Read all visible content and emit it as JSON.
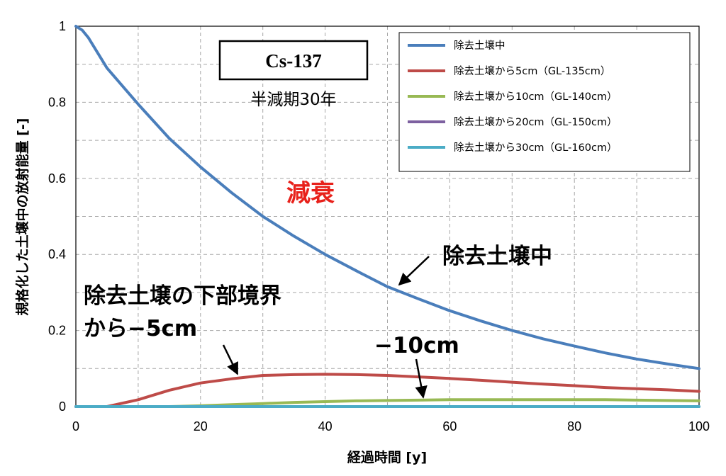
{
  "chart_data": {
    "type": "line",
    "xlabel": "経過時間 [y]",
    "ylabel": "規格化した土壌中の放射能量 [-]",
    "xlim": [
      0,
      100
    ],
    "ylim": [
      0,
      1
    ],
    "xticks": [
      "0",
      "20",
      "40",
      "60",
      "80",
      "100"
    ],
    "yticks": [
      "0",
      "0.2",
      "0.4",
      "0.6",
      "0.8",
      "1"
    ],
    "grid": true,
    "legend_position": "top-right",
    "series": [
      {
        "name": "除去土壌中",
        "color": "#4a7ebb",
        "x": [
          0,
          1,
          2,
          5,
          10,
          15,
          20,
          25,
          30,
          35,
          40,
          45,
          50,
          55,
          60,
          65,
          70,
          75,
          80,
          85,
          90,
          95,
          100
        ],
        "y": [
          1.0,
          0.99,
          0.97,
          0.89,
          0.795,
          0.705,
          0.63,
          0.562,
          0.5,
          0.448,
          0.4,
          0.357,
          0.315,
          0.283,
          0.252,
          0.225,
          0.2,
          0.178,
          0.159,
          0.141,
          0.125,
          0.112,
          0.1
        ]
      },
      {
        "name": "除去土壌から5cm（GL-135cm）",
        "color": "#be4b48",
        "x": [
          0,
          5,
          10,
          15,
          20,
          25,
          30,
          35,
          40,
          45,
          50,
          55,
          60,
          65,
          70,
          75,
          80,
          85,
          90,
          95,
          100
        ],
        "y": [
          0,
          0,
          0.018,
          0.043,
          0.062,
          0.073,
          0.082,
          0.084,
          0.085,
          0.084,
          0.082,
          0.078,
          0.074,
          0.069,
          0.064,
          0.059,
          0.055,
          0.05,
          0.047,
          0.044,
          0.04
        ]
      },
      {
        "name": "除去土壌から10cm（GL-140cm）",
        "color": "#98b954",
        "x": [
          0,
          15,
          20,
          25,
          30,
          35,
          40,
          45,
          50,
          55,
          60,
          65,
          70,
          75,
          80,
          85,
          90,
          95,
          100
        ],
        "y": [
          0,
          0,
          0.002,
          0.005,
          0.008,
          0.011,
          0.013,
          0.015,
          0.016,
          0.017,
          0.018,
          0.018,
          0.018,
          0.018,
          0.018,
          0.018,
          0.017,
          0.016,
          0.015
        ]
      },
      {
        "name": "除去土壌から20cm（GL-150cm）",
        "color": "#7d60a0",
        "x": [
          0,
          100
        ],
        "y": [
          0,
          0
        ]
      },
      {
        "name": "除去土壌から30cm（GL-160cm）",
        "color": "#4bacc6",
        "x": [
          0,
          100
        ],
        "y": [
          0,
          0
        ]
      }
    ],
    "annotations": {
      "box_title": "Cs-137",
      "half_life": "半減期30年",
      "decay": "減衰",
      "soil_inside": "除去土壌中",
      "below_boundary_line1": "除去土壌の下部境界",
      "below_boundary_line2": "から−5cm",
      "minus10": "−10cm"
    }
  }
}
